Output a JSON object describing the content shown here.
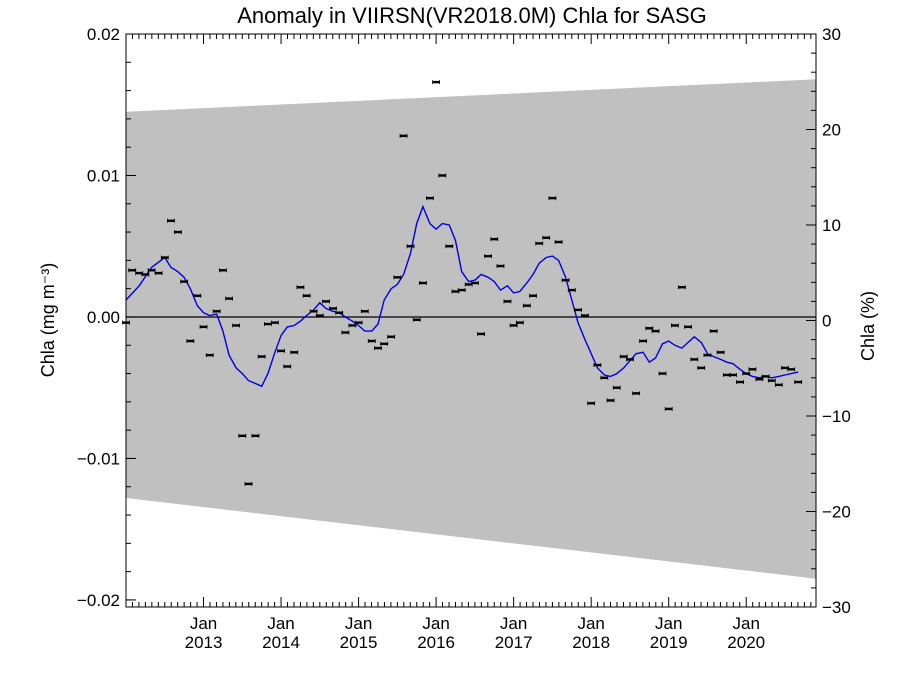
{
  "chart_data": {
    "type": "line",
    "title": "Anomaly in VIIRSN(VR2018.0M) Chla for SASG",
    "ylabel": "Chla (mg m⁻³)",
    "y2label": "Chla (%)",
    "xlim": [
      2012.0,
      2020.9
    ],
    "ylim": [
      -0.0205,
      0.02
    ],
    "y2lim": [
      -30,
      30
    ],
    "yticks": [
      "0.02",
      "0.01",
      "0.00",
      "−0.01",
      "−0.02"
    ],
    "yticks_values": [
      0.02,
      0.01,
      0.0,
      -0.01,
      -0.02
    ],
    "y2ticks": [
      "30",
      "20",
      "10",
      "0",
      "−10",
      "−20",
      "−30"
    ],
    "y2ticks_values": [
      30,
      20,
      10,
      0,
      -10,
      -20,
      -30
    ],
    "xticks": [
      {
        "month": "Jan",
        "year": "2013",
        "x": 2013.0
      },
      {
        "month": "Jan",
        "year": "2014",
        "x": 2014.0
      },
      {
        "month": "Jan",
        "year": "2015",
        "x": 2015.0
      },
      {
        "month": "Jan",
        "year": "2016",
        "x": 2016.0
      },
      {
        "month": "Jan",
        "year": "2017",
        "x": 2017.0
      },
      {
        "month": "Jan",
        "year": "2018",
        "x": 2018.0
      },
      {
        "month": "Jan",
        "year": "2019",
        "x": 2019.0
      },
      {
        "month": "Jan",
        "year": "2020",
        "x": 2020.0
      }
    ],
    "band": {
      "color": "#c0c0c0",
      "upper": [
        [
          2012.0,
          0.0145
        ],
        [
          2020.9,
          0.0168
        ]
      ],
      "lower": [
        [
          2012.0,
          -0.0128
        ],
        [
          2020.9,
          -0.0185
        ]
      ]
    },
    "monthly_points": [
      [
        2012.0,
        -0.0004
      ],
      [
        2012.08,
        0.0033
      ],
      [
        2012.17,
        0.0031
      ],
      [
        2012.25,
        0.003
      ],
      [
        2012.33,
        0.0033
      ],
      [
        2012.42,
        0.0031
      ],
      [
        2012.5,
        0.0042
      ],
      [
        2012.58,
        0.0068
      ],
      [
        2012.67,
        0.006
      ],
      [
        2012.75,
        0.0025
      ],
      [
        2012.83,
        -0.0017
      ],
      [
        2012.92,
        0.0015
      ],
      [
        2013.0,
        -0.0007
      ],
      [
        2013.08,
        -0.0027
      ],
      [
        2013.17,
        0.0004
      ],
      [
        2013.25,
        0.0033
      ],
      [
        2013.33,
        0.0013
      ],
      [
        2013.42,
        -0.0006
      ],
      [
        2013.5,
        -0.0084
      ],
      [
        2013.58,
        -0.0118
      ],
      [
        2013.67,
        -0.0084
      ],
      [
        2013.75,
        -0.0028
      ],
      [
        2013.83,
        -0.0005
      ],
      [
        2013.92,
        -0.0004
      ],
      [
        2014.0,
        -0.0024
      ],
      [
        2014.08,
        -0.0035
      ],
      [
        2014.17,
        -0.0025
      ],
      [
        2014.25,
        0.0021
      ],
      [
        2014.33,
        0.0015
      ],
      [
        2014.42,
        0.0004
      ],
      [
        2014.5,
        0.0001
      ],
      [
        2014.58,
        0.0011
      ],
      [
        2014.67,
        0.0006
      ],
      [
        2014.75,
        0.0003
      ],
      [
        2014.83,
        -0.0011
      ],
      [
        2014.92,
        -0.0006
      ],
      [
        2015.0,
        -0.0004
      ],
      [
        2015.08,
        0.0004
      ],
      [
        2015.17,
        -0.0017
      ],
      [
        2015.25,
        -0.0022
      ],
      [
        2015.33,
        -0.0019
      ],
      [
        2015.42,
        -0.0014
      ],
      [
        2015.5,
        0.0028
      ],
      [
        2015.58,
        0.0128
      ],
      [
        2015.67,
        0.005
      ],
      [
        2015.75,
        -0.0002
      ],
      [
        2015.83,
        0.0024
      ],
      [
        2015.92,
        0.0084
      ],
      [
        2016.0,
        0.0166
      ],
      [
        2016.08,
        0.01
      ],
      [
        2016.17,
        0.005
      ],
      [
        2016.25,
        0.0018
      ],
      [
        2016.33,
        0.0019
      ],
      [
        2016.42,
        0.0023
      ],
      [
        2016.5,
        0.0024
      ],
      [
        2016.58,
        -0.0012
      ],
      [
        2016.67,
        0.0043
      ],
      [
        2016.75,
        0.0055
      ],
      [
        2016.83,
        0.0036
      ],
      [
        2016.92,
        0.0011
      ],
      [
        2017.0,
        -0.0006
      ],
      [
        2017.08,
        -0.0004
      ],
      [
        2017.17,
        0.0008
      ],
      [
        2017.25,
        0.0015
      ],
      [
        2017.33,
        0.0052
      ],
      [
        2017.42,
        0.0056
      ],
      [
        2017.5,
        0.0084
      ],
      [
        2017.58,
        0.0053
      ],
      [
        2017.67,
        0.0026
      ],
      [
        2017.75,
        0.0019
      ],
      [
        2017.83,
        0.0005
      ],
      [
        2017.92,
        0.0001
      ],
      [
        2018.0,
        -0.0061
      ],
      [
        2018.08,
        -0.0034
      ],
      [
        2018.17,
        -0.0043
      ],
      [
        2018.25,
        -0.0059
      ],
      [
        2018.33,
        -0.005
      ],
      [
        2018.42,
        -0.0028
      ],
      [
        2018.5,
        -0.003
      ],
      [
        2018.58,
        -0.0054
      ],
      [
        2018.67,
        -0.0017
      ],
      [
        2018.75,
        -0.0008
      ],
      [
        2018.83,
        -0.001
      ],
      [
        2018.92,
        -0.004
      ],
      [
        2019.0,
        -0.0065
      ],
      [
        2019.08,
        -0.0006
      ],
      [
        2019.17,
        0.0021
      ],
      [
        2019.25,
        -0.0007
      ],
      [
        2019.33,
        -0.003
      ],
      [
        2019.42,
        -0.0036
      ],
      [
        2019.5,
        -0.0027
      ],
      [
        2019.58,
        -0.001
      ],
      [
        2019.67,
        -0.0025
      ],
      [
        2019.75,
        -0.0041
      ],
      [
        2019.83,
        -0.0041
      ],
      [
        2019.92,
        -0.0046
      ],
      [
        2020.0,
        -0.004
      ],
      [
        2020.08,
        -0.0037
      ],
      [
        2020.17,
        -0.0044
      ],
      [
        2020.25,
        -0.0042
      ],
      [
        2020.33,
        -0.0045
      ],
      [
        2020.42,
        -0.0048
      ],
      [
        2020.5,
        -0.0036
      ],
      [
        2020.58,
        -0.0037
      ],
      [
        2020.67,
        -0.0046
      ]
    ],
    "smoothed_line": {
      "color": "#0000e0",
      "points": [
        [
          2012.0,
          0.0012
        ],
        [
          2012.17,
          0.0022
        ],
        [
          2012.33,
          0.0035
        ],
        [
          2012.5,
          0.0042
        ],
        [
          2012.58,
          0.0035
        ],
        [
          2012.67,
          0.0032
        ],
        [
          2012.75,
          0.0028
        ],
        [
          2012.83,
          0.002
        ],
        [
          2012.92,
          0.0008
        ],
        [
          2013.0,
          0.0003
        ],
        [
          2013.08,
          0.0001
        ],
        [
          2013.17,
          0.0002
        ],
        [
          2013.25,
          -0.001
        ],
        [
          2013.33,
          -0.0027
        ],
        [
          2013.42,
          -0.0036
        ],
        [
          2013.5,
          -0.004
        ],
        [
          2013.58,
          -0.0045
        ],
        [
          2013.67,
          -0.0047
        ],
        [
          2013.75,
          -0.0049
        ],
        [
          2013.83,
          -0.004
        ],
        [
          2013.92,
          -0.0025
        ],
        [
          2014.0,
          -0.0013
        ],
        [
          2014.08,
          -0.0007
        ],
        [
          2014.17,
          -0.0006
        ],
        [
          2014.25,
          -0.0003
        ],
        [
          2014.33,
          0.0001
        ],
        [
          2014.42,
          0.0005
        ],
        [
          2014.5,
          0.001
        ],
        [
          2014.58,
          0.0006
        ],
        [
          2014.67,
          0.0004
        ],
        [
          2014.75,
          0.0003
        ],
        [
          2014.83,
          0.0
        ],
        [
          2014.92,
          -0.0003
        ],
        [
          2015.0,
          -0.0006
        ],
        [
          2015.08,
          -0.001
        ],
        [
          2015.17,
          -0.001
        ],
        [
          2015.25,
          -0.0005
        ],
        [
          2015.33,
          0.0012
        ],
        [
          2015.42,
          0.002
        ],
        [
          2015.5,
          0.0023
        ],
        [
          2015.58,
          0.003
        ],
        [
          2015.67,
          0.0045
        ],
        [
          2015.75,
          0.0066
        ],
        [
          2015.83,
          0.0078
        ],
        [
          2015.92,
          0.0066
        ],
        [
          2016.0,
          0.0062
        ],
        [
          2016.08,
          0.0066
        ],
        [
          2016.17,
          0.0065
        ],
        [
          2016.25,
          0.0054
        ],
        [
          2016.33,
          0.0032
        ],
        [
          2016.42,
          0.0025
        ],
        [
          2016.5,
          0.0026
        ],
        [
          2016.58,
          0.003
        ],
        [
          2016.67,
          0.0028
        ],
        [
          2016.75,
          0.0025
        ],
        [
          2016.83,
          0.0019
        ],
        [
          2016.92,
          0.0022
        ],
        [
          2017.0,
          0.0017
        ],
        [
          2017.08,
          0.0018
        ],
        [
          2017.17,
          0.0024
        ],
        [
          2017.25,
          0.003
        ],
        [
          2017.33,
          0.0038
        ],
        [
          2017.42,
          0.0042
        ],
        [
          2017.5,
          0.0043
        ],
        [
          2017.58,
          0.004
        ],
        [
          2017.67,
          0.0028
        ],
        [
          2017.75,
          0.0012
        ],
        [
          2017.83,
          -0.0004
        ],
        [
          2017.92,
          -0.0016
        ],
        [
          2018.0,
          -0.0026
        ],
        [
          2018.08,
          -0.0036
        ],
        [
          2018.17,
          -0.0041
        ],
        [
          2018.25,
          -0.0042
        ],
        [
          2018.33,
          -0.004
        ],
        [
          2018.42,
          -0.0036
        ],
        [
          2018.5,
          -0.0031
        ],
        [
          2018.58,
          -0.0026
        ],
        [
          2018.67,
          -0.0025
        ],
        [
          2018.75,
          -0.0032
        ],
        [
          2018.83,
          -0.0029
        ],
        [
          2018.92,
          -0.0019
        ],
        [
          2019.0,
          -0.0017
        ],
        [
          2019.08,
          -0.002
        ],
        [
          2019.17,
          -0.0022
        ],
        [
          2019.25,
          -0.0018
        ],
        [
          2019.33,
          -0.0014
        ],
        [
          2019.42,
          -0.0018
        ],
        [
          2019.5,
          -0.0026
        ],
        [
          2019.58,
          -0.0028
        ],
        [
          2019.67,
          -0.003
        ],
        [
          2019.75,
          -0.0032
        ],
        [
          2019.83,
          -0.0033
        ],
        [
          2019.92,
          -0.0037
        ],
        [
          2020.0,
          -0.004
        ],
        [
          2020.08,
          -0.0042
        ],
        [
          2020.17,
          -0.0043
        ],
        [
          2020.25,
          -0.0042
        ],
        [
          2020.33,
          -0.0043
        ],
        [
          2020.42,
          -0.0042
        ],
        [
          2020.5,
          -0.0041
        ],
        [
          2020.58,
          -0.004
        ],
        [
          2020.67,
          -0.0039
        ]
      ]
    }
  }
}
